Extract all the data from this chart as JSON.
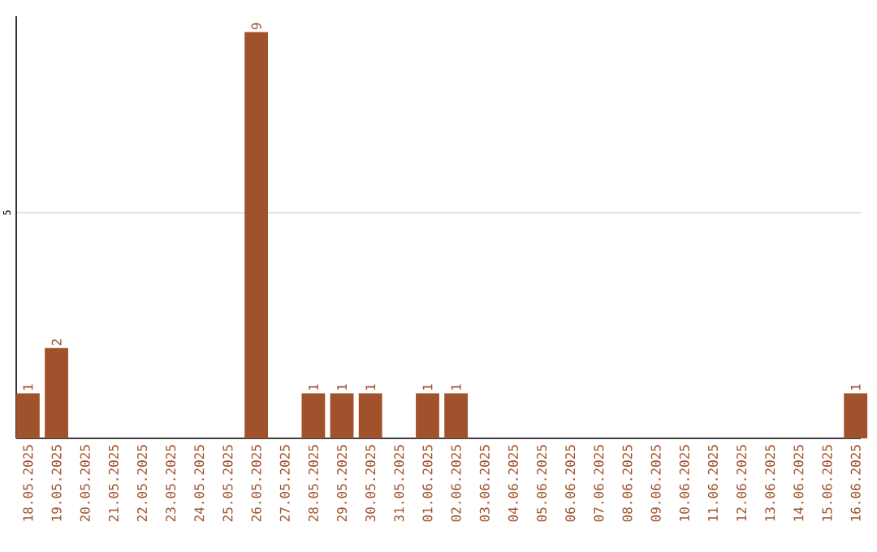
{
  "chart_data": {
    "type": "bar",
    "categories": [
      "18.05.2025",
      "19.05.2025",
      "20.05.2025",
      "21.05.2025",
      "22.05.2025",
      "23.05.2025",
      "24.05.2025",
      "25.05.2025",
      "26.05.2025",
      "27.05.2025",
      "28.05.2025",
      "29.05.2025",
      "30.05.2025",
      "31.05.2025",
      "01.06.2025",
      "02.06.2025",
      "03.06.2025",
      "04.06.2025",
      "05.06.2025",
      "06.06.2025",
      "07.06.2025",
      "08.06.2025",
      "09.06.2025",
      "10.06.2025",
      "11.06.2025",
      "12.06.2025",
      "13.06.2025",
      "14.06.2025",
      "15.06.2025",
      "16.06.2025"
    ],
    "values": [
      1,
      2,
      0,
      0,
      0,
      0,
      0,
      0,
      9,
      0,
      1,
      1,
      1,
      0,
      1,
      1,
      0,
      0,
      0,
      0,
      0,
      0,
      0,
      0,
      0,
      0,
      0,
      0,
      0,
      1
    ],
    "value_labels": [
      "1",
      "2",
      null,
      null,
      null,
      null,
      null,
      null,
      "9",
      null,
      "1",
      "1",
      "1",
      null,
      "1",
      "1",
      null,
      null,
      null,
      null,
      null,
      null,
      null,
      null,
      null,
      null,
      null,
      null,
      null,
      "1"
    ],
    "color": "#a0522d",
    "ylim": [
      0,
      9.35
    ],
    "yticks": [
      5
    ],
    "grid": "y"
  }
}
